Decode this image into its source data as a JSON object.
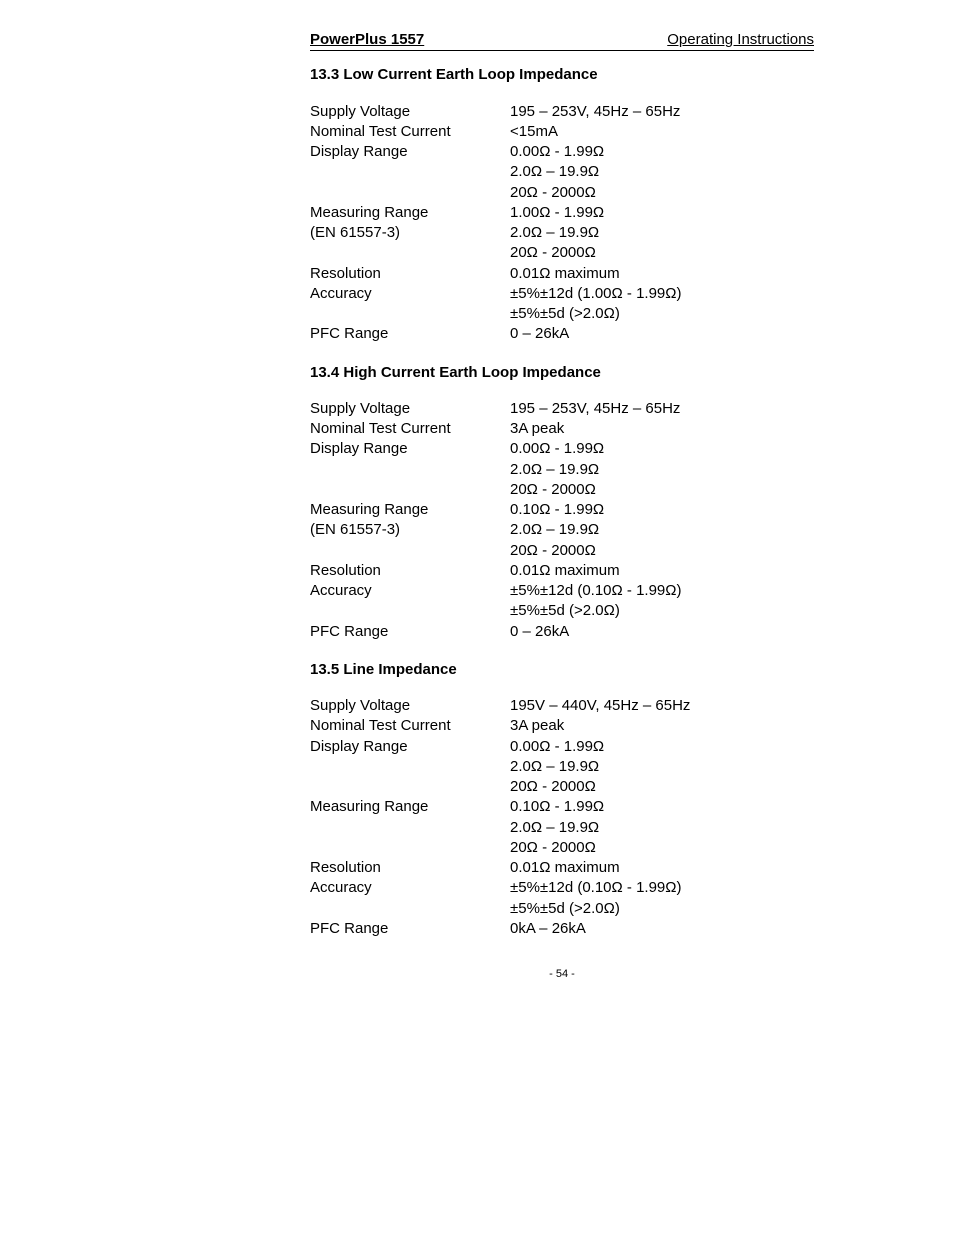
{
  "header": {
    "left": "PowerPlus 1557",
    "right": "Operating Instructions"
  },
  "sections": [
    {
      "heading": "13.3  Low Current Earth Loop Impedance",
      "rows": [
        {
          "label": "Supply Voltage",
          "values": [
            "195 – 253V, 45Hz – 65Hz"
          ]
        },
        {
          "label": "Nominal Test Current",
          "values": [
            "<15mA"
          ]
        },
        {
          "label": "Display Range",
          "values": [
            "0.00Ω - 1.99Ω",
            "2.0Ω – 19.9Ω",
            "20Ω - 2000Ω"
          ]
        },
        {
          "label": "Measuring Range",
          "values": [
            "1.00Ω - 1.99Ω"
          ]
        },
        {
          "label": "(EN 61557-3)",
          "values": [
            "2.0Ω – 19.9Ω",
            "20Ω - 2000Ω"
          ]
        },
        {
          "label": "Resolution",
          "values": [
            "0.01Ω  maximum"
          ]
        },
        {
          "label": "Accuracy",
          "values": [
            "±5%±12d (1.00Ω - 1.99Ω)",
            "±5%±5d (>2.0Ω)"
          ]
        },
        {
          "label": "PFC Range",
          "values": [
            "0 – 26kA"
          ]
        }
      ]
    },
    {
      "heading": "13.4 High Current Earth Loop Impedance",
      "rows": [
        {
          "label": "Supply Voltage",
          "values": [
            "195 – 253V, 45Hz – 65Hz"
          ]
        },
        {
          "label": "Nominal Test Current",
          "values": [
            "3A peak"
          ]
        },
        {
          "label": "Display Range",
          "values": [
            "0.00Ω - 1.99Ω",
            "2.0Ω – 19.9Ω",
            "20Ω - 2000Ω"
          ]
        },
        {
          "label": "Measuring Range",
          "values": [
            "0.10Ω - 1.99Ω"
          ]
        },
        {
          "label": "(EN 61557-3)",
          "values": [
            "2.0Ω – 19.9Ω",
            "20Ω - 2000Ω"
          ]
        },
        {
          "label": "Resolution",
          "values": [
            "0.01Ω maximum"
          ]
        },
        {
          "label": "Accuracy",
          "values": [
            "±5%±12d (0.10Ω - 1.99Ω)",
            "±5%±5d (>2.0Ω)"
          ]
        },
        {
          "label": "PFC Range",
          "values": [
            "0 – 26kA"
          ]
        }
      ]
    },
    {
      "heading": "13.5  Line Impedance",
      "rows": [
        {
          "label": "Supply Voltage",
          "values": [
            "195V – 440V, 45Hz – 65Hz"
          ]
        },
        {
          "label": "Nominal Test Current",
          "values": [
            "3A peak"
          ]
        },
        {
          "label": "Display Range",
          "values": [
            "0.00Ω - 1.99Ω",
            "2.0Ω – 19.9Ω",
            "20Ω - 2000Ω"
          ]
        },
        {
          "label": "Measuring Range",
          "values": [
            "0.10Ω - 1.99Ω",
            "2.0Ω – 19.9Ω",
            "20Ω - 2000Ω"
          ]
        },
        {
          "label": "Resolution",
          "values": [
            "0.01Ω maximum"
          ]
        },
        {
          "label": "Accuracy",
          "values": [
            "±5%±12d (0.10Ω - 1.99Ω)",
            "±5%±5d (>2.0Ω)"
          ]
        },
        {
          "label": "PFC Range",
          "values": [
            "0kA – 26kA"
          ]
        }
      ]
    }
  ],
  "page_number": "- 54 -"
}
